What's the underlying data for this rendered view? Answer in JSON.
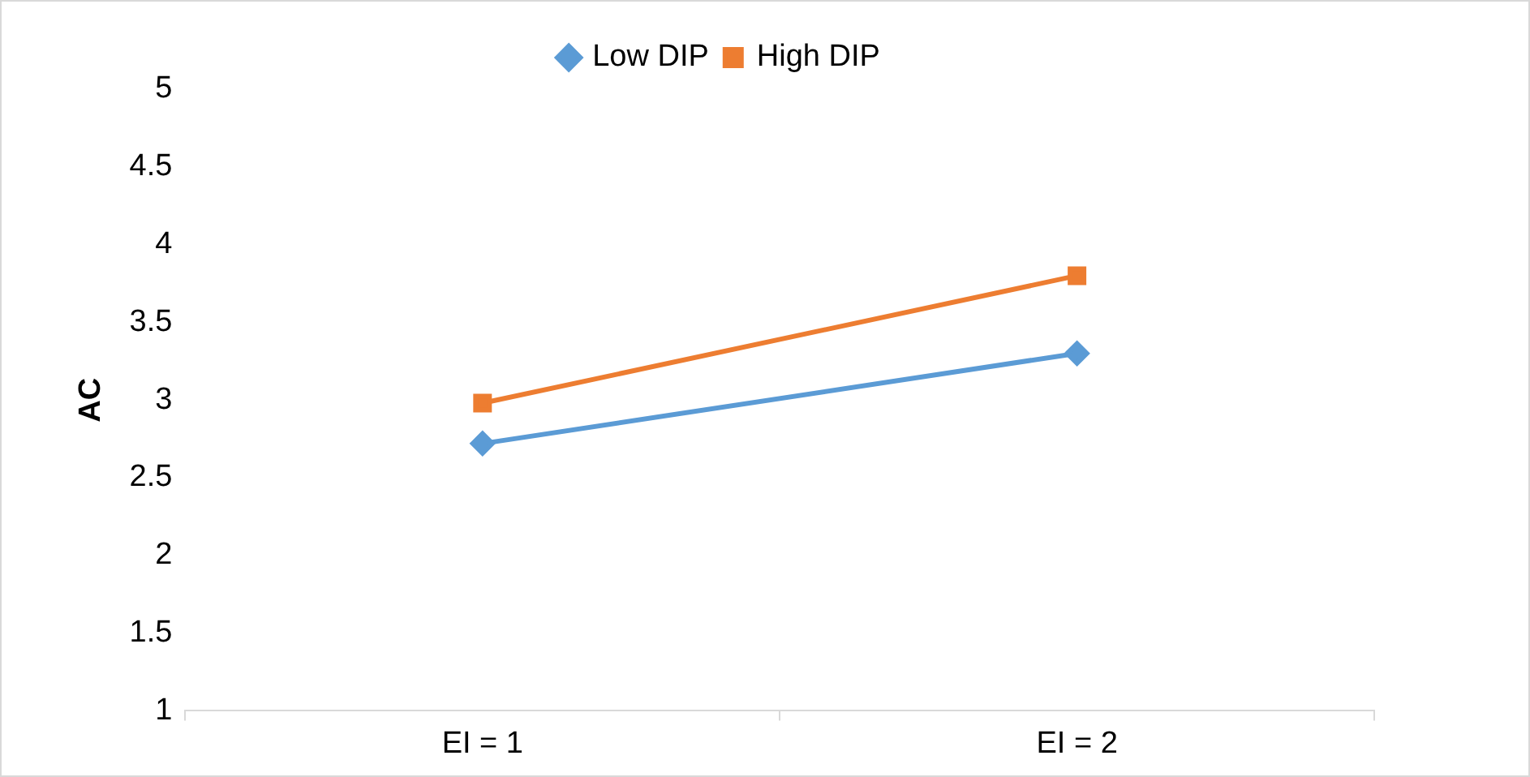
{
  "chart_data": {
    "type": "line",
    "ylabel": "AC",
    "categories": [
      "EI = 1",
      "EI = 2"
    ],
    "series": [
      {
        "name": "Low DIP",
        "color": "#5b9bd5",
        "marker": "diamond",
        "values": [
          2.72,
          3.3
        ]
      },
      {
        "name": "High DIP",
        "color": "#ed7d31",
        "marker": "square",
        "values": [
          2.98,
          3.8
        ]
      }
    ],
    "ylim": [
      1,
      5
    ],
    "yticks": [
      1,
      1.5,
      2,
      2.5,
      3,
      3.5,
      4,
      4.5,
      5
    ],
    "grid": false,
    "legend": "top",
    "line_style": "solid"
  }
}
